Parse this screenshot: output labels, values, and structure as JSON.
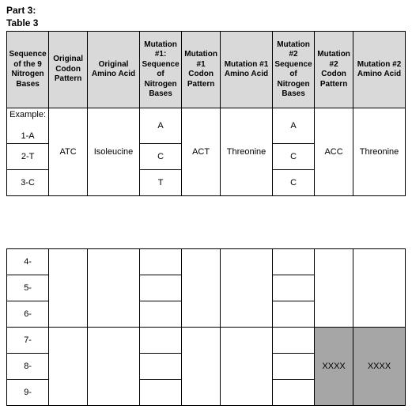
{
  "heading": {
    "part": "Part 3:",
    "table": "Table 3"
  },
  "headers": [
    "Sequence of the 9 Nitrogen Bases",
    "Original Codon Pattern",
    "Original Amino Acid",
    "Mutation #1: Sequence of Nitrogen Bases",
    "Mutation #1 Codon Pattern",
    "Mutation #1 Amino Acid",
    "Mutation #2 Sequence of Nitrogen Bases",
    "Mutation #2 Codon Pattern",
    "Mutation #2 Amino Acid"
  ],
  "top": {
    "labels": [
      "Example:",
      "1-A",
      "2-T",
      "3-C"
    ],
    "codon_orig": "ATC",
    "amino_orig": "Isoleucine",
    "m1_bases": [
      "A",
      "C",
      "T"
    ],
    "m1_codon": "ACT",
    "m1_amino": "Threonine",
    "m2_bases": [
      "A",
      "C",
      "C"
    ],
    "m2_codon": "ACC",
    "m2_amino": "Threonine"
  },
  "bottom": {
    "labels": [
      "4-",
      "5-",
      "6-",
      "7-",
      "8-",
      "9-"
    ],
    "xxxx": "XXXX"
  }
}
